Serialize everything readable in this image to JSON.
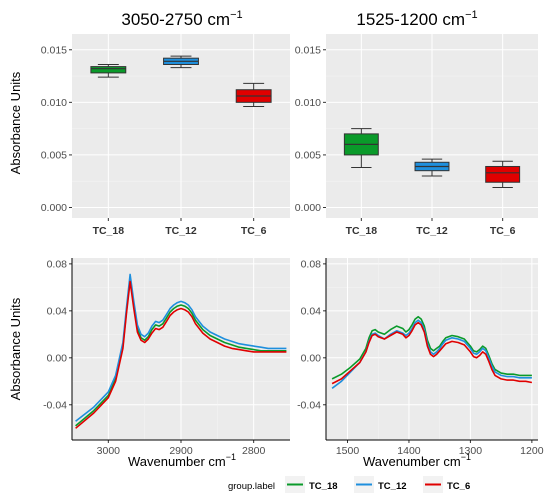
{
  "chart_data": [
    {
      "type": "box",
      "title": "3050-2750",
      "title_unit": "cm",
      "title_sup": "−1",
      "ylabel": "Absorbance Units",
      "ylim": [
        -0.001,
        0.0165
      ],
      "yticks": [
        "0.000",
        "0.005",
        "0.010",
        "0.015"
      ],
      "ytick_values": [
        0.0,
        0.005,
        0.01,
        0.015
      ],
      "categories": [
        "TC_18",
        "TC_12",
        "TC_6"
      ],
      "boxes": [
        {
          "category": "TC_18",
          "min": 0.0124,
          "q1": 0.0128,
          "median": 0.0132,
          "q3": 0.0134,
          "max": 0.0136,
          "color": "#0a9a2a"
        },
        {
          "category": "TC_12",
          "min": 0.0133,
          "q1": 0.0136,
          "median": 0.0139,
          "q3": 0.0142,
          "max": 0.0144,
          "color": "#1e8fdd"
        },
        {
          "category": "TC_6",
          "min": 0.0096,
          "q1": 0.01,
          "median": 0.0106,
          "q3": 0.0112,
          "max": 0.0118,
          "color": "#e00000"
        }
      ]
    },
    {
      "type": "box",
      "title": "1525-1200",
      "title_unit": "cm",
      "title_sup": "−1",
      "ylabel": "",
      "ylim": [
        -0.001,
        0.0165
      ],
      "yticks": [
        "0.000",
        "0.005",
        "0.010",
        "0.015"
      ],
      "ytick_values": [
        0.0,
        0.005,
        0.01,
        0.015
      ],
      "categories": [
        "TC_18",
        "TC_12",
        "TC_6"
      ],
      "boxes": [
        {
          "category": "TC_18",
          "min": 0.0038,
          "q1": 0.005,
          "median": 0.006,
          "q3": 0.007,
          "max": 0.0075,
          "color": "#0a9a2a"
        },
        {
          "category": "TC_12",
          "min": 0.003,
          "q1": 0.0035,
          "median": 0.0039,
          "q3": 0.0043,
          "max": 0.0046,
          "color": "#1e8fdd"
        },
        {
          "category": "TC_6",
          "min": 0.0019,
          "q1": 0.0024,
          "median": 0.0033,
          "q3": 0.0039,
          "max": 0.0044,
          "color": "#e00000"
        }
      ]
    },
    {
      "type": "line",
      "xlabel": "Wavenumber",
      "xlabel_unit": "cm",
      "xlabel_sup": "−1",
      "ylabel": "Absorbance Units",
      "xlim": [
        3050,
        2750
      ],
      "ylim": [
        -0.07,
        0.085
      ],
      "xticks": [
        "3000",
        "2900",
        "2800"
      ],
      "xtick_values": [
        3000,
        2900,
        2800
      ],
      "yticks": [
        "-0.04",
        "0.00",
        "0.04",
        "0.08"
      ],
      "ytick_values": [
        -0.04,
        0.0,
        0.04,
        0.08
      ],
      "series": [
        {
          "name": "TC_18",
          "color": "#0a9a2a",
          "x": [
            3045,
            3020,
            3000,
            2990,
            2980,
            2975,
            2970,
            2965,
            2960,
            2955,
            2950,
            2945,
            2940,
            2935,
            2930,
            2925,
            2920,
            2915,
            2910,
            2905,
            2900,
            2895,
            2890,
            2885,
            2880,
            2870,
            2860,
            2850,
            2840,
            2830,
            2820,
            2810,
            2800,
            2790,
            2780,
            2770,
            2755
          ],
          "y": [
            -0.058,
            -0.045,
            -0.032,
            -0.018,
            0.01,
            0.04,
            0.068,
            0.045,
            0.025,
            0.017,
            0.015,
            0.018,
            0.024,
            0.028,
            0.027,
            0.029,
            0.034,
            0.039,
            0.042,
            0.044,
            0.045,
            0.044,
            0.042,
            0.038,
            0.032,
            0.024,
            0.019,
            0.016,
            0.013,
            0.011,
            0.009,
            0.008,
            0.007,
            0.006,
            0.006,
            0.006,
            0.006
          ]
        },
        {
          "name": "TC_12",
          "color": "#1e8fdd",
          "x": [
            3045,
            3020,
            3000,
            2990,
            2980,
            2975,
            2970,
            2965,
            2960,
            2955,
            2950,
            2945,
            2940,
            2935,
            2930,
            2925,
            2920,
            2915,
            2910,
            2905,
            2900,
            2895,
            2890,
            2885,
            2880,
            2870,
            2860,
            2850,
            2840,
            2830,
            2820,
            2810,
            2800,
            2790,
            2780,
            2770,
            2755
          ],
          "y": [
            -0.054,
            -0.042,
            -0.029,
            -0.015,
            0.013,
            0.043,
            0.071,
            0.048,
            0.028,
            0.02,
            0.018,
            0.021,
            0.027,
            0.031,
            0.03,
            0.032,
            0.037,
            0.042,
            0.045,
            0.047,
            0.048,
            0.047,
            0.045,
            0.041,
            0.035,
            0.027,
            0.022,
            0.019,
            0.016,
            0.014,
            0.012,
            0.011,
            0.01,
            0.009,
            0.008,
            0.008,
            0.008
          ]
        },
        {
          "name": "TC_6",
          "color": "#e00000",
          "x": [
            3045,
            3020,
            3000,
            2990,
            2980,
            2975,
            2970,
            2965,
            2960,
            2955,
            2950,
            2945,
            2940,
            2935,
            2930,
            2925,
            2920,
            2915,
            2910,
            2905,
            2900,
            2895,
            2890,
            2885,
            2880,
            2870,
            2860,
            2850,
            2840,
            2830,
            2820,
            2810,
            2800,
            2790,
            2780,
            2770,
            2755
          ],
          "y": [
            -0.06,
            -0.047,
            -0.034,
            -0.02,
            0.008,
            0.038,
            0.065,
            0.042,
            0.022,
            0.015,
            0.013,
            0.016,
            0.021,
            0.025,
            0.024,
            0.026,
            0.031,
            0.036,
            0.039,
            0.041,
            0.042,
            0.041,
            0.039,
            0.035,
            0.029,
            0.021,
            0.016,
            0.013,
            0.01,
            0.008,
            0.007,
            0.006,
            0.005,
            0.005,
            0.005,
            0.005,
            0.005
          ]
        }
      ]
    },
    {
      "type": "line",
      "xlabel": "Wavenumber",
      "xlabel_unit": "cm",
      "xlabel_sup": "−1",
      "ylabel": "",
      "xlim": [
        1535,
        1190
      ],
      "ylim": [
        -0.07,
        0.085
      ],
      "xticks": [
        "1500",
        "1400",
        "1300",
        "1200"
      ],
      "xtick_values": [
        1500,
        1400,
        1300,
        1200
      ],
      "yticks": [
        "-0.04",
        "0.00",
        "0.04",
        "0.08"
      ],
      "ytick_values": [
        -0.04,
        0.0,
        0.04,
        0.08
      ],
      "series": [
        {
          "name": "TC_18",
          "color": "#0a9a2a",
          "x": [
            1525,
            1510,
            1495,
            1480,
            1470,
            1465,
            1460,
            1455,
            1450,
            1440,
            1430,
            1420,
            1410,
            1405,
            1400,
            1395,
            1390,
            1385,
            1380,
            1375,
            1370,
            1365,
            1360,
            1355,
            1350,
            1345,
            1340,
            1330,
            1320,
            1310,
            1300,
            1295,
            1290,
            1285,
            1280,
            1275,
            1270,
            1265,
            1260,
            1250,
            1240,
            1230,
            1220,
            1210,
            1200
          ],
          "y": [
            -0.018,
            -0.014,
            -0.008,
            -0.001,
            0.008,
            0.017,
            0.023,
            0.024,
            0.022,
            0.02,
            0.024,
            0.027,
            0.025,
            0.022,
            0.024,
            0.028,
            0.033,
            0.035,
            0.033,
            0.027,
            0.015,
            0.008,
            0.006,
            0.008,
            0.01,
            0.014,
            0.017,
            0.019,
            0.018,
            0.016,
            0.01,
            0.006,
            0.005,
            0.007,
            0.01,
            0.008,
            0.002,
            -0.005,
            -0.01,
            -0.013,
            -0.014,
            -0.014,
            -0.015,
            -0.015,
            -0.015
          ]
        },
        {
          "name": "TC_12",
          "color": "#1e8fdd",
          "x": [
            1525,
            1510,
            1495,
            1480,
            1470,
            1465,
            1460,
            1455,
            1450,
            1440,
            1430,
            1420,
            1410,
            1405,
            1400,
            1395,
            1390,
            1385,
            1380,
            1375,
            1370,
            1365,
            1360,
            1355,
            1350,
            1345,
            1340,
            1330,
            1320,
            1310,
            1300,
            1295,
            1290,
            1285,
            1280,
            1275,
            1270,
            1265,
            1260,
            1250,
            1240,
            1230,
            1220,
            1210,
            1200
          ],
          "y": [
            -0.026,
            -0.02,
            -0.012,
            -0.004,
            0.005,
            0.014,
            0.02,
            0.021,
            0.019,
            0.016,
            0.02,
            0.023,
            0.021,
            0.019,
            0.021,
            0.025,
            0.03,
            0.032,
            0.03,
            0.024,
            0.012,
            0.005,
            0.003,
            0.005,
            0.008,
            0.012,
            0.015,
            0.017,
            0.016,
            0.014,
            0.008,
            0.004,
            0.003,
            0.005,
            0.008,
            0.006,
            0.0,
            -0.007,
            -0.012,
            -0.015,
            -0.016,
            -0.016,
            -0.017,
            -0.017,
            -0.017
          ]
        },
        {
          "name": "TC_6",
          "color": "#e00000",
          "x": [
            1525,
            1510,
            1495,
            1480,
            1470,
            1465,
            1460,
            1455,
            1450,
            1440,
            1430,
            1420,
            1410,
            1405,
            1400,
            1395,
            1390,
            1385,
            1380,
            1375,
            1370,
            1365,
            1360,
            1355,
            1350,
            1345,
            1340,
            1330,
            1320,
            1310,
            1300,
            1295,
            1290,
            1285,
            1280,
            1275,
            1270,
            1265,
            1260,
            1250,
            1240,
            1230,
            1220,
            1210,
            1200
          ],
          "y": [
            -0.022,
            -0.018,
            -0.011,
            -0.004,
            0.005,
            0.013,
            0.019,
            0.02,
            0.018,
            0.016,
            0.019,
            0.022,
            0.02,
            0.017,
            0.019,
            0.023,
            0.028,
            0.03,
            0.028,
            0.022,
            0.01,
            0.003,
            0.001,
            0.003,
            0.006,
            0.009,
            0.012,
            0.014,
            0.013,
            0.011,
            0.005,
            0.001,
            0.0,
            0.002,
            0.005,
            0.003,
            -0.003,
            -0.01,
            -0.015,
            -0.018,
            -0.019,
            -0.019,
            -0.02,
            -0.02,
            -0.021
          ]
        }
      ]
    }
  ],
  "legend": {
    "title": "group.label",
    "items": [
      {
        "label": "TC_18",
        "color": "#0a9a2a"
      },
      {
        "label": "TC_12",
        "color": "#1e8fdd"
      },
      {
        "label": "TC_6",
        "color": "#e00000"
      }
    ]
  }
}
